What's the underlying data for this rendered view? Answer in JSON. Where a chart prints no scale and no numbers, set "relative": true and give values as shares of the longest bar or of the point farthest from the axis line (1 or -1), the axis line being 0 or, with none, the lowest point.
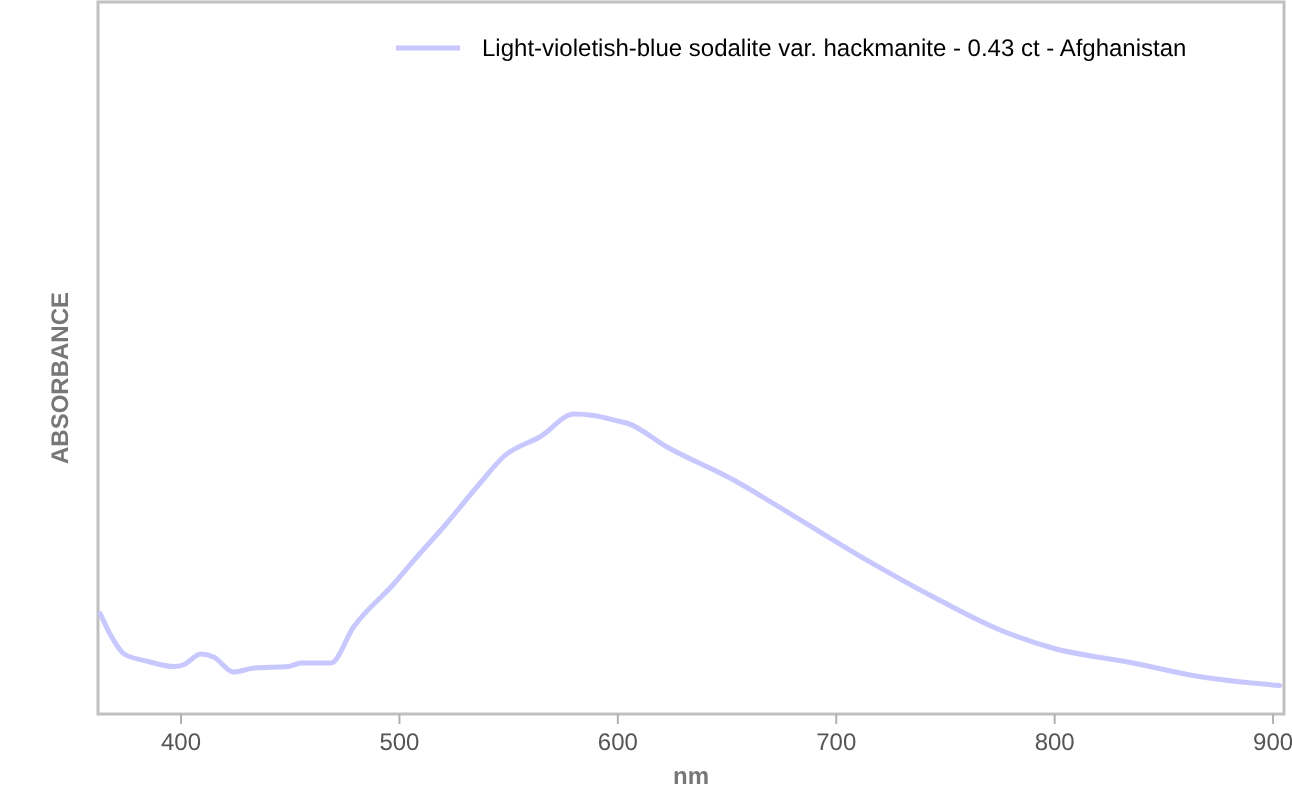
{
  "chart_data": {
    "type": "line",
    "xlabel": "nm",
    "ylabel": "ABSORBANCE",
    "relative": true,
    "xlim": [
      362,
      905
    ],
    "xticks": [
      400,
      500,
      600,
      700,
      800,
      900
    ],
    "grid": false,
    "legend": "top right",
    "line_style": "solid",
    "marker": "none",
    "x": [
      363,
      368,
      374,
      385,
      397,
      401.5,
      409,
      415,
      424,
      433.5,
      449,
      455,
      468.6,
      479,
      497.6,
      506.7,
      520.4,
      537,
      548,
      564.6,
      580,
      589,
      601,
      604,
      622.5,
      653,
      683.5,
      714,
      744.5,
      775,
      799,
      836,
      866,
      903
    ],
    "series": [
      {
        "name": "Light-violetish-blue sodalite var. hackmanite - 0.43 ct - Afghanistan",
        "color": "#c8c8ff",
        "values": [
          0.335,
          0.26,
          0.2,
          0.175,
          0.158,
          0.165,
          0.2,
          0.19,
          0.14,
          0.153,
          0.158,
          0.17,
          0.17,
          0.29,
          0.435,
          0.513,
          0.625,
          0.77,
          0.86,
          0.925,
          1,
          0.995,
          0.975,
          0.97,
          0.89,
          0.78,
          0.647,
          0.513,
          0.39,
          0.28,
          0.22,
          0.17,
          0.125,
          0.095
        ]
      }
    ]
  }
}
